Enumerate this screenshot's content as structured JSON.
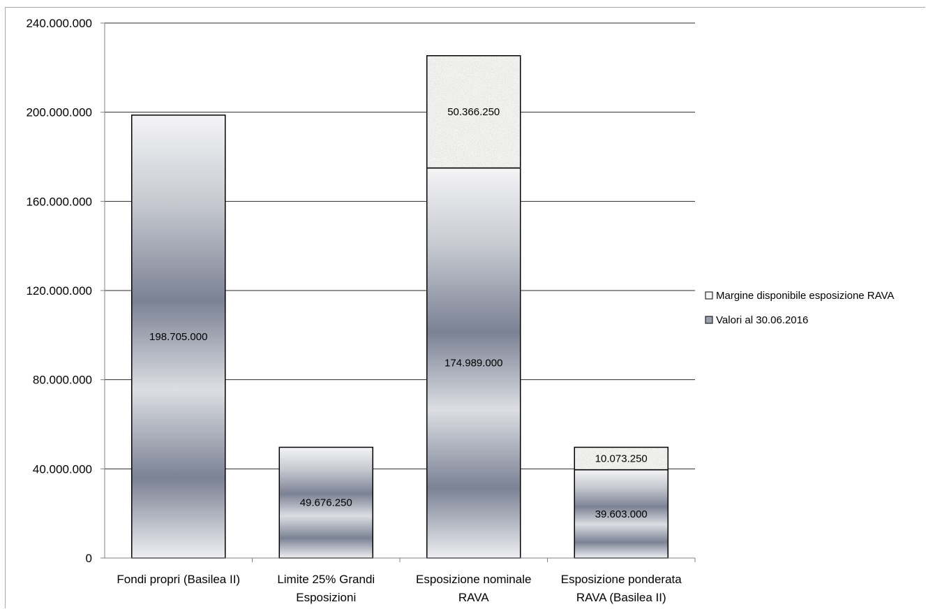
{
  "chart_data": {
    "type": "bar",
    "stacked": true,
    "title": "",
    "xlabel": "",
    "ylabel": "",
    "ylim": [
      0,
      240000000
    ],
    "yticks": [
      0,
      40000000,
      80000000,
      120000000,
      160000000,
      200000000,
      240000000
    ],
    "ytick_labels": [
      "0",
      "40.000.000",
      "80.000.000",
      "120.000.000",
      "160.000.000",
      "200.000.000",
      "240.000.000"
    ],
    "categories": [
      [
        "Fondi propri (Basilea II)"
      ],
      [
        "Limite 25% Grandi",
        "Esposizioni"
      ],
      [
        "Esposizione nominale",
        "RAVA"
      ],
      [
        "Esposizione ponderata",
        "RAVA (Basilea II)"
      ]
    ],
    "series": [
      {
        "name": "Valori al 30.06.2016",
        "values": [
          198705000,
          49676250,
          174989000,
          39603000
        ],
        "labels": [
          "198.705.000",
          "49.676.250",
          "174.989.000",
          "39.603.000"
        ]
      },
      {
        "name": "Margine disponibile esposizione RAVA",
        "values": [
          0,
          0,
          50366250,
          10073250
        ],
        "labels": [
          "",
          "",
          "50.366.250",
          "10.073.250"
        ]
      }
    ],
    "grid": true,
    "legend": "right"
  }
}
